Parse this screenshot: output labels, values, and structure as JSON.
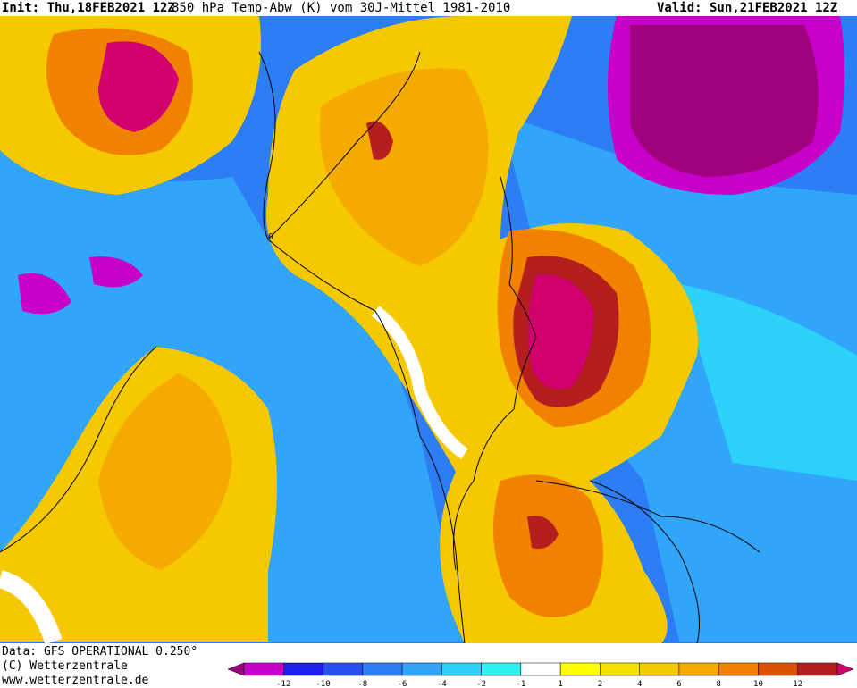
{
  "header": {
    "init": "Init: Thu,18FEB2021 12Z",
    "description": "850 hPa Temp-Abw (K) vom 30J-Mittel 1981-2010",
    "valid": "Valid: Sun,21FEB2021 12Z"
  },
  "footer": {
    "data_source": "Data: GFS OPERATIONAL 0.250°",
    "copyright": "(C) Wetterzentrale",
    "website": "www.wetterzentrale.de"
  },
  "legend": {
    "colors": [
      "#9e007e",
      "#c800c8",
      "#1e1ee6",
      "#2850f0",
      "#2d7df5",
      "#30a5fa",
      "#2dd2fa",
      "#30f0f0",
      "#ffffff",
      "#ffff00",
      "#f5e100",
      "#f5c800",
      "#f5aa00",
      "#f08200",
      "#dc5000",
      "#b41e1e",
      "#d2006e"
    ],
    "ticks": [
      "-12",
      "-10",
      "-8",
      "-6",
      "-4",
      "-2",
      "-1",
      "1",
      "2",
      "4",
      "6",
      "8",
      "10",
      "12"
    ],
    "zero_contour_label": "0"
  },
  "palette": {
    "background_cold": "#2d7df5",
    "deep_cold": "#9e007e",
    "neutral": "#ffffff",
    "warm": "#f5aa00",
    "hot": "#b41e1e",
    "extreme_hot": "#d2006e"
  }
}
